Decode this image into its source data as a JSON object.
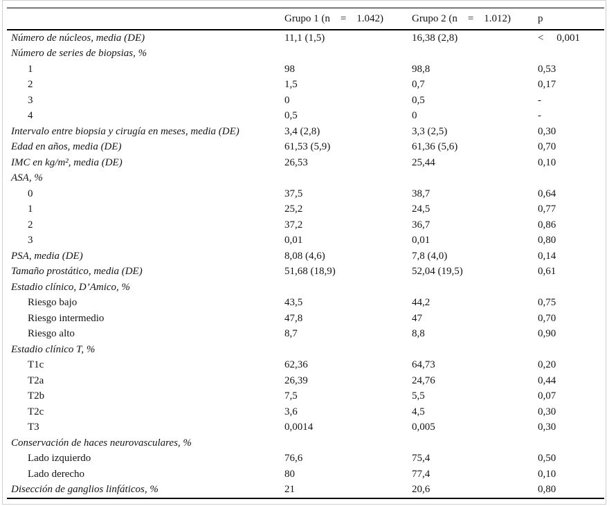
{
  "table": {
    "header": {
      "parameter": "",
      "group1": "Grupo 1 (n    =    1.042)",
      "group2": "Grupo 2 (n    =    1.012)",
      "p": "p"
    },
    "rows": [
      {
        "label": "Número de núcleos, media (DE)",
        "style": "category",
        "g1": "11,1 (1,5)",
        "g2": "16,38 (2,8)",
        "p": "<     0,001"
      },
      {
        "label": "Número de series de biopsias, %",
        "style": "category",
        "g1": "",
        "g2": "",
        "p": ""
      },
      {
        "label": "1",
        "style": "sub",
        "g1": "98",
        "g2": "98,8",
        "p": "0,53"
      },
      {
        "label": "2",
        "style": "sub",
        "g1": "1,5",
        "g2": "0,7",
        "p": "0,17"
      },
      {
        "label": "3",
        "style": "sub",
        "g1": "0",
        "g2": "0,5",
        "p": "-"
      },
      {
        "label": "4",
        "style": "sub",
        "g1": "0,5",
        "g2": "0",
        "p": "-"
      },
      {
        "label": "Intervalo entre biopsia y cirugía en meses, media (DE)",
        "style": "category",
        "g1": "3,4 (2,8)",
        "g2": "3,3 (2,5)",
        "p": "0,30"
      },
      {
        "label": "Edad en años, media (DE)",
        "style": "category",
        "g1": "61,53 (5,9)",
        "g2": "61,36 (5,6)",
        "p": "0,70"
      },
      {
        "label": "IMC en kg/m², media (DE)",
        "style": "category",
        "g1": "26,53",
        "g2": "25,44",
        "p": "0,10"
      },
      {
        "label": "ASA, %",
        "style": "category",
        "g1": "",
        "g2": "",
        "p": ""
      },
      {
        "label": "0",
        "style": "sub",
        "g1": "37,5",
        "g2": "38,7",
        "p": "0,64"
      },
      {
        "label": "1",
        "style": "sub",
        "g1": "25,2",
        "g2": "24,5",
        "p": "0,77"
      },
      {
        "label": "2",
        "style": "sub",
        "g1": "37,2",
        "g2": "36,7",
        "p": "0,86"
      },
      {
        "label": "3",
        "style": "sub",
        "g1": "0,01",
        "g2": "0,01",
        "p": "0,80"
      },
      {
        "label": "PSA, media (DE)",
        "style": "category",
        "g1": "8,08 (4,6)",
        "g2": "7,8 (4,0)",
        "p": "0,14"
      },
      {
        "label": "Tamaño prostático, media (DE)",
        "style": "category",
        "g1": "51,68 (18,9)",
        "g2": "52,04 (19,5)",
        "p": "0,61"
      },
      {
        "label": "Estadio clínico, D’Amico, %",
        "style": "category",
        "g1": "",
        "g2": "",
        "p": ""
      },
      {
        "label": "Riesgo bajo",
        "style": "sub",
        "g1": "43,5",
        "g2": "44,2",
        "p": "0,75"
      },
      {
        "label": "Riesgo intermedio",
        "style": "sub",
        "g1": "47,8",
        "g2": "47",
        "p": "0,70"
      },
      {
        "label": "Riesgo alto",
        "style": "sub",
        "g1": "8,7",
        "g2": "8,8",
        "p": "0,90"
      },
      {
        "label": "Estadio clínico T, %",
        "style": "category",
        "g1": "",
        "g2": "",
        "p": ""
      },
      {
        "label": "T1c",
        "style": "sub",
        "g1": "62,36",
        "g2": "64,73",
        "p": "0,20"
      },
      {
        "label": "T2a",
        "style": "sub",
        "g1": "26,39",
        "g2": "24,76",
        "p": "0,44"
      },
      {
        "label": "T2b",
        "style": "sub",
        "g1": "7,5",
        "g2": "5,5",
        "p": "0,07"
      },
      {
        "label": "T2c",
        "style": "sub",
        "g1": "3,6",
        "g2": "4,5",
        "p": "0,30"
      },
      {
        "label": "T3",
        "style": "sub",
        "g1": "0,0014",
        "g2": "0,005",
        "p": "0,30"
      },
      {
        "label": "Conservación de haces neurovasculares, %",
        "style": "category",
        "g1": "",
        "g2": "",
        "p": ""
      },
      {
        "label": "Lado izquierdo",
        "style": "sub",
        "g1": "76,6",
        "g2": "75,4",
        "p": "0,50"
      },
      {
        "label": "Lado derecho",
        "style": "sub",
        "g1": "80",
        "g2": "77,4",
        "p": "0,10"
      },
      {
        "label": "Disección de ganglios linfáticos, %",
        "style": "category",
        "g1": "21",
        "g2": "20,6",
        "p": "0,80"
      }
    ]
  }
}
